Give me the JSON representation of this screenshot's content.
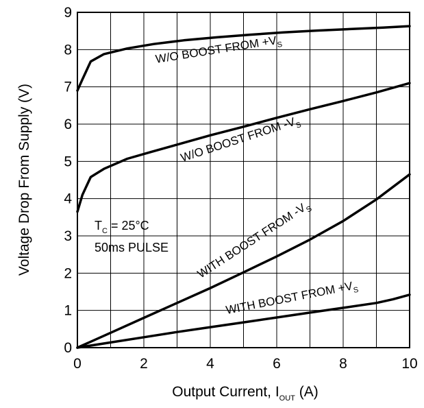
{
  "chart_data": {
    "type": "line",
    "xlabel": "Output Current, I",
    "xlabel_sub": "OUT",
    "xlabel_suffix": " (A)",
    "ylabel": "Voltage Drop From Supply (V)",
    "xlim": [
      0,
      10
    ],
    "ylim": [
      0,
      9
    ],
    "xticks": [
      "0",
      "2",
      "4",
      "6",
      "8",
      "10"
    ],
    "yticks": [
      "0",
      "1",
      "2",
      "3",
      "4",
      "5",
      "6",
      "7",
      "8",
      "9"
    ],
    "grid": true,
    "series": [
      {
        "name": "W/O BOOST FROM +V",
        "name_sub": "S",
        "x": [
          0,
          0.15,
          0.4,
          0.8,
          1.5,
          2.3,
          3.2,
          4.2,
          5.2,
          6.2,
          7.2,
          8.2,
          9.2,
          10
        ],
        "y": [
          6.9,
          7.2,
          7.68,
          7.88,
          8.03,
          8.15,
          8.25,
          8.33,
          8.4,
          8.46,
          8.51,
          8.55,
          8.59,
          8.63
        ]
      },
      {
        "name": "W/O BOOST FROM -V",
        "name_sub": "S",
        "x": [
          0,
          0.15,
          0.4,
          0.8,
          1.5,
          2.2,
          3,
          4,
          5,
          6,
          7,
          8,
          9,
          10
        ],
        "y": [
          3.65,
          4.1,
          4.58,
          4.8,
          5.07,
          5.25,
          5.45,
          5.7,
          5.93,
          6.17,
          6.4,
          6.62,
          6.85,
          7.1
        ]
      },
      {
        "name": "WITH BOOST FROM -V",
        "name_sub": "S",
        "x": [
          0,
          1,
          2,
          3,
          4,
          5,
          6,
          7,
          8,
          9,
          10
        ],
        "y": [
          0,
          0.4,
          0.8,
          1.2,
          1.6,
          2.02,
          2.45,
          2.9,
          3.4,
          3.98,
          4.65
        ]
      },
      {
        "name": "WITH BOOST FROM +V",
        "name_sub": "S",
        "x": [
          0,
          1,
          2,
          3,
          4,
          5,
          6,
          7,
          8,
          9,
          9.5,
          10
        ],
        "y": [
          0,
          0.14,
          0.28,
          0.42,
          0.55,
          0.68,
          0.81,
          0.94,
          1.07,
          1.2,
          1.3,
          1.42
        ]
      }
    ],
    "annotations": {
      "tc_prefix": "T",
      "tc_sub": "C",
      "tc_value": " = 25°C",
      "pulse": "50ms PULSE"
    }
  }
}
